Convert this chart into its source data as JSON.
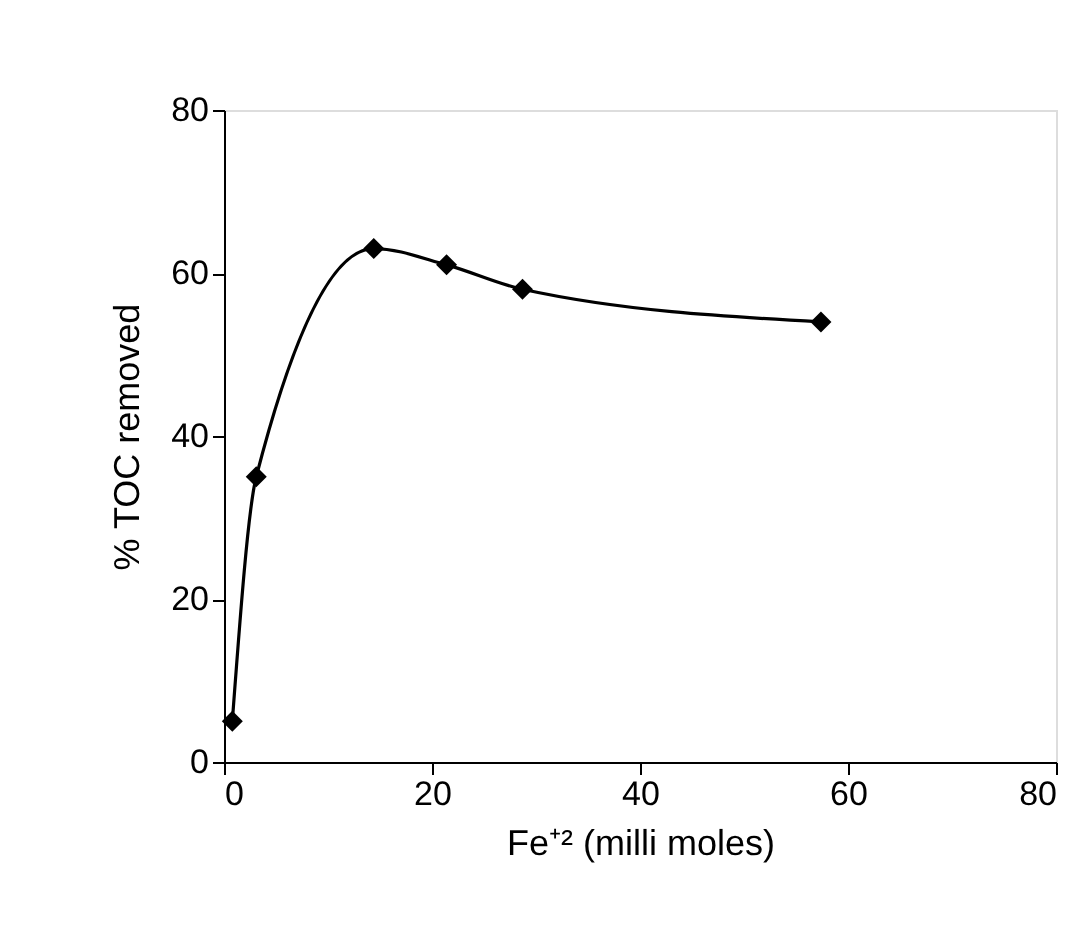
{
  "chart_data": {
    "type": "line",
    "x": [
      0.8,
      3.1,
      14.4,
      21.4,
      28.7,
      57.4
    ],
    "series": [
      {
        "color": "#000000",
        "values": [
          5,
          35,
          63,
          61,
          58,
          54
        ]
      }
    ],
    "xlabel": "Fe⁺² (milli moles)",
    "ylabel": "% TOC removed",
    "xlim": [
      0,
      80
    ],
    "xticks": [
      0,
      20,
      40,
      60,
      80
    ],
    "ylim": [
      0,
      80
    ],
    "yticks": [
      0,
      20,
      40,
      60,
      80
    ],
    "marker": "diamond",
    "line_style": "solid",
    "grid": false
  }
}
